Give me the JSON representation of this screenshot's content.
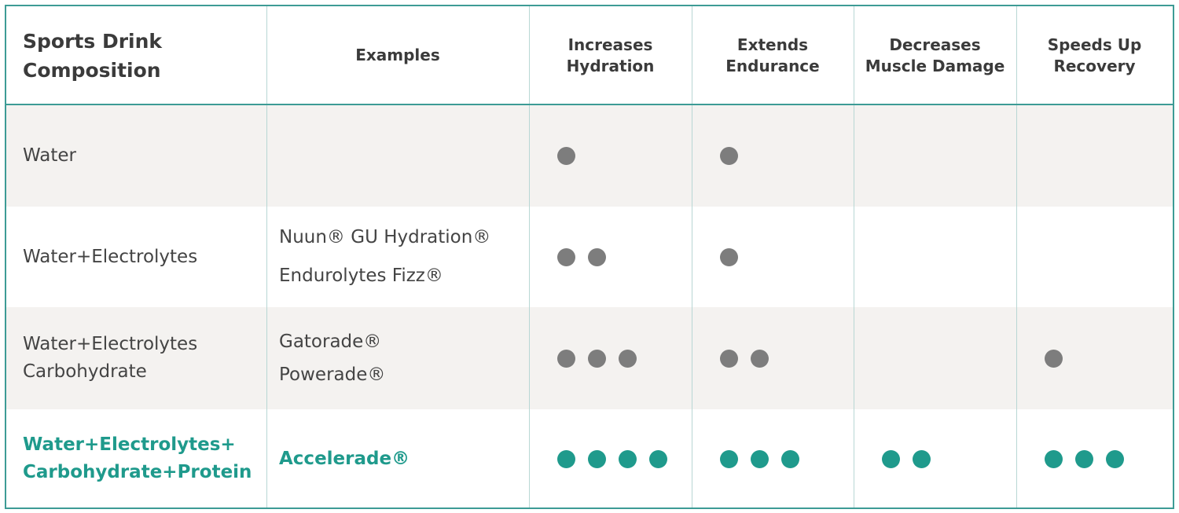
{
  "table": {
    "header": [
      [
        "Sports Drink",
        "Composition"
      ],
      [
        "Examples"
      ],
      [
        "Increases",
        "Hydration"
      ],
      [
        "Extends",
        "Endurance"
      ],
      [
        "Decreases",
        "Muscle Damage"
      ],
      [
        "Speeds Up",
        "Recovery"
      ]
    ],
    "rows": [
      {
        "name": [
          "Water"
        ],
        "examples": [],
        "dots": [
          1,
          1,
          0,
          0
        ],
        "color": "#7d7d7d",
        "text_color": "#444444"
      },
      {
        "name": [
          "Water+Electrolytes"
        ],
        "examples": [
          "Nuun®  GU Hydration®",
          "Endurolytes Fizz®"
        ],
        "dots": [
          2,
          1,
          0,
          0
        ],
        "color": "#7d7d7d",
        "text_color": "#444444"
      },
      {
        "name": [
          "Water+Electrolytes",
          "Carbohydrate"
        ],
        "examples": [
          "Gatorade®",
          "Powerade®"
        ],
        "dots": [
          3,
          2,
          0,
          1
        ],
        "color": "#7d7d7d",
        "text_color": "#444444"
      },
      {
        "name": [
          "Water+Electrolytes+",
          "Carbohydrate+Protein"
        ],
        "examples": [
          "Accelerade®"
        ],
        "dots": [
          4,
          3,
          2,
          3
        ],
        "color": "#1f9a8c",
        "text_color": "#1f9a8c"
      }
    ]
  }
}
